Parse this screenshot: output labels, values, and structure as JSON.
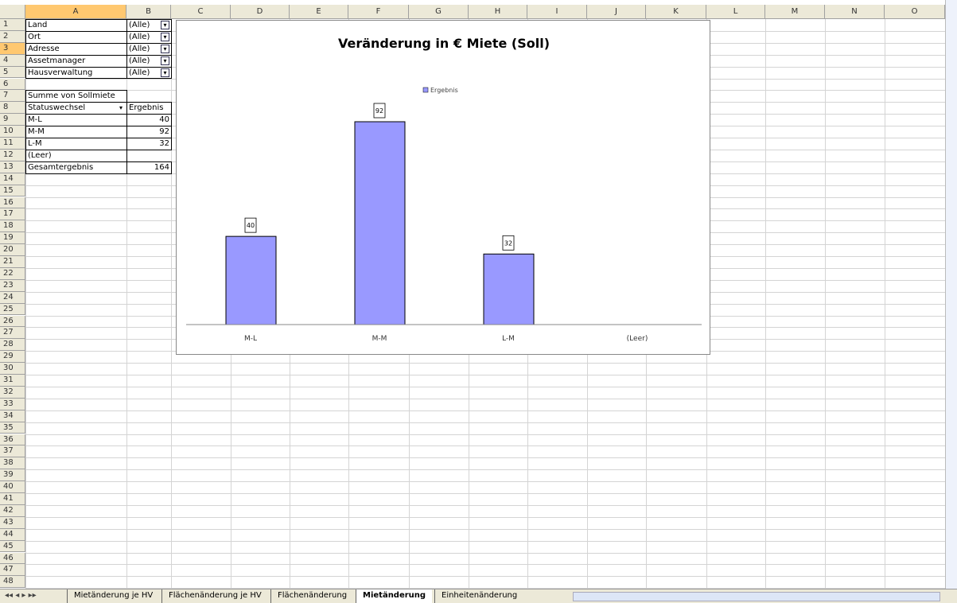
{
  "columns": [
    "A",
    "B",
    "C",
    "D",
    "E",
    "F",
    "G",
    "H",
    "I",
    "J",
    "K",
    "L",
    "M",
    "N",
    "O"
  ],
  "row_numbers": [
    1,
    2,
    3,
    4,
    5,
    6,
    7,
    8,
    9,
    10,
    11,
    12,
    13,
    14,
    15,
    16,
    17,
    18,
    19,
    20,
    21,
    22,
    23,
    24,
    25,
    26,
    27,
    28,
    29,
    30,
    31,
    32,
    33,
    34,
    35,
    36,
    37,
    38,
    39,
    40,
    41,
    42,
    43,
    44,
    45,
    46,
    47,
    48
  ],
  "sheet": {
    "rows": [
      [
        "Land",
        "(Alle)"
      ],
      [
        "Ort",
        "(Alle)"
      ],
      [
        "Adresse",
        "(Alle)"
      ],
      [
        "Assetmanager",
        "(Alle)"
      ],
      [
        "Hausverwaltung",
        "(Alle)"
      ],
      [
        null,
        null
      ],
      [
        "Summe von Sollmiete",
        null
      ],
      [
        "Statuswechsel",
        "Ergebnis"
      ],
      [
        "M-L",
        "40"
      ],
      [
        "M-M",
        "92"
      ],
      [
        "L-M",
        "32"
      ],
      [
        "(Leer)",
        null
      ],
      [
        "Gesamtergebnis",
        "164"
      ]
    ]
  },
  "chart_data": {
    "type": "bar",
    "title": "Veränderung in € Miete (Soll)",
    "categories": [
      "M-L",
      "M-M",
      "L-M",
      "(Leer)"
    ],
    "series": [
      {
        "name": "Ergebnis",
        "color": "#9999ff",
        "values": [
          40,
          92,
          32,
          null
        ]
      }
    ],
    "legend": "top"
  },
  "tabs": [
    "Mietänderung je HV",
    "Flächenänderung je HV",
    "Flächenänderung",
    "Mietänderung",
    "Einheitenänderung"
  ],
  "active_tab": 3
}
